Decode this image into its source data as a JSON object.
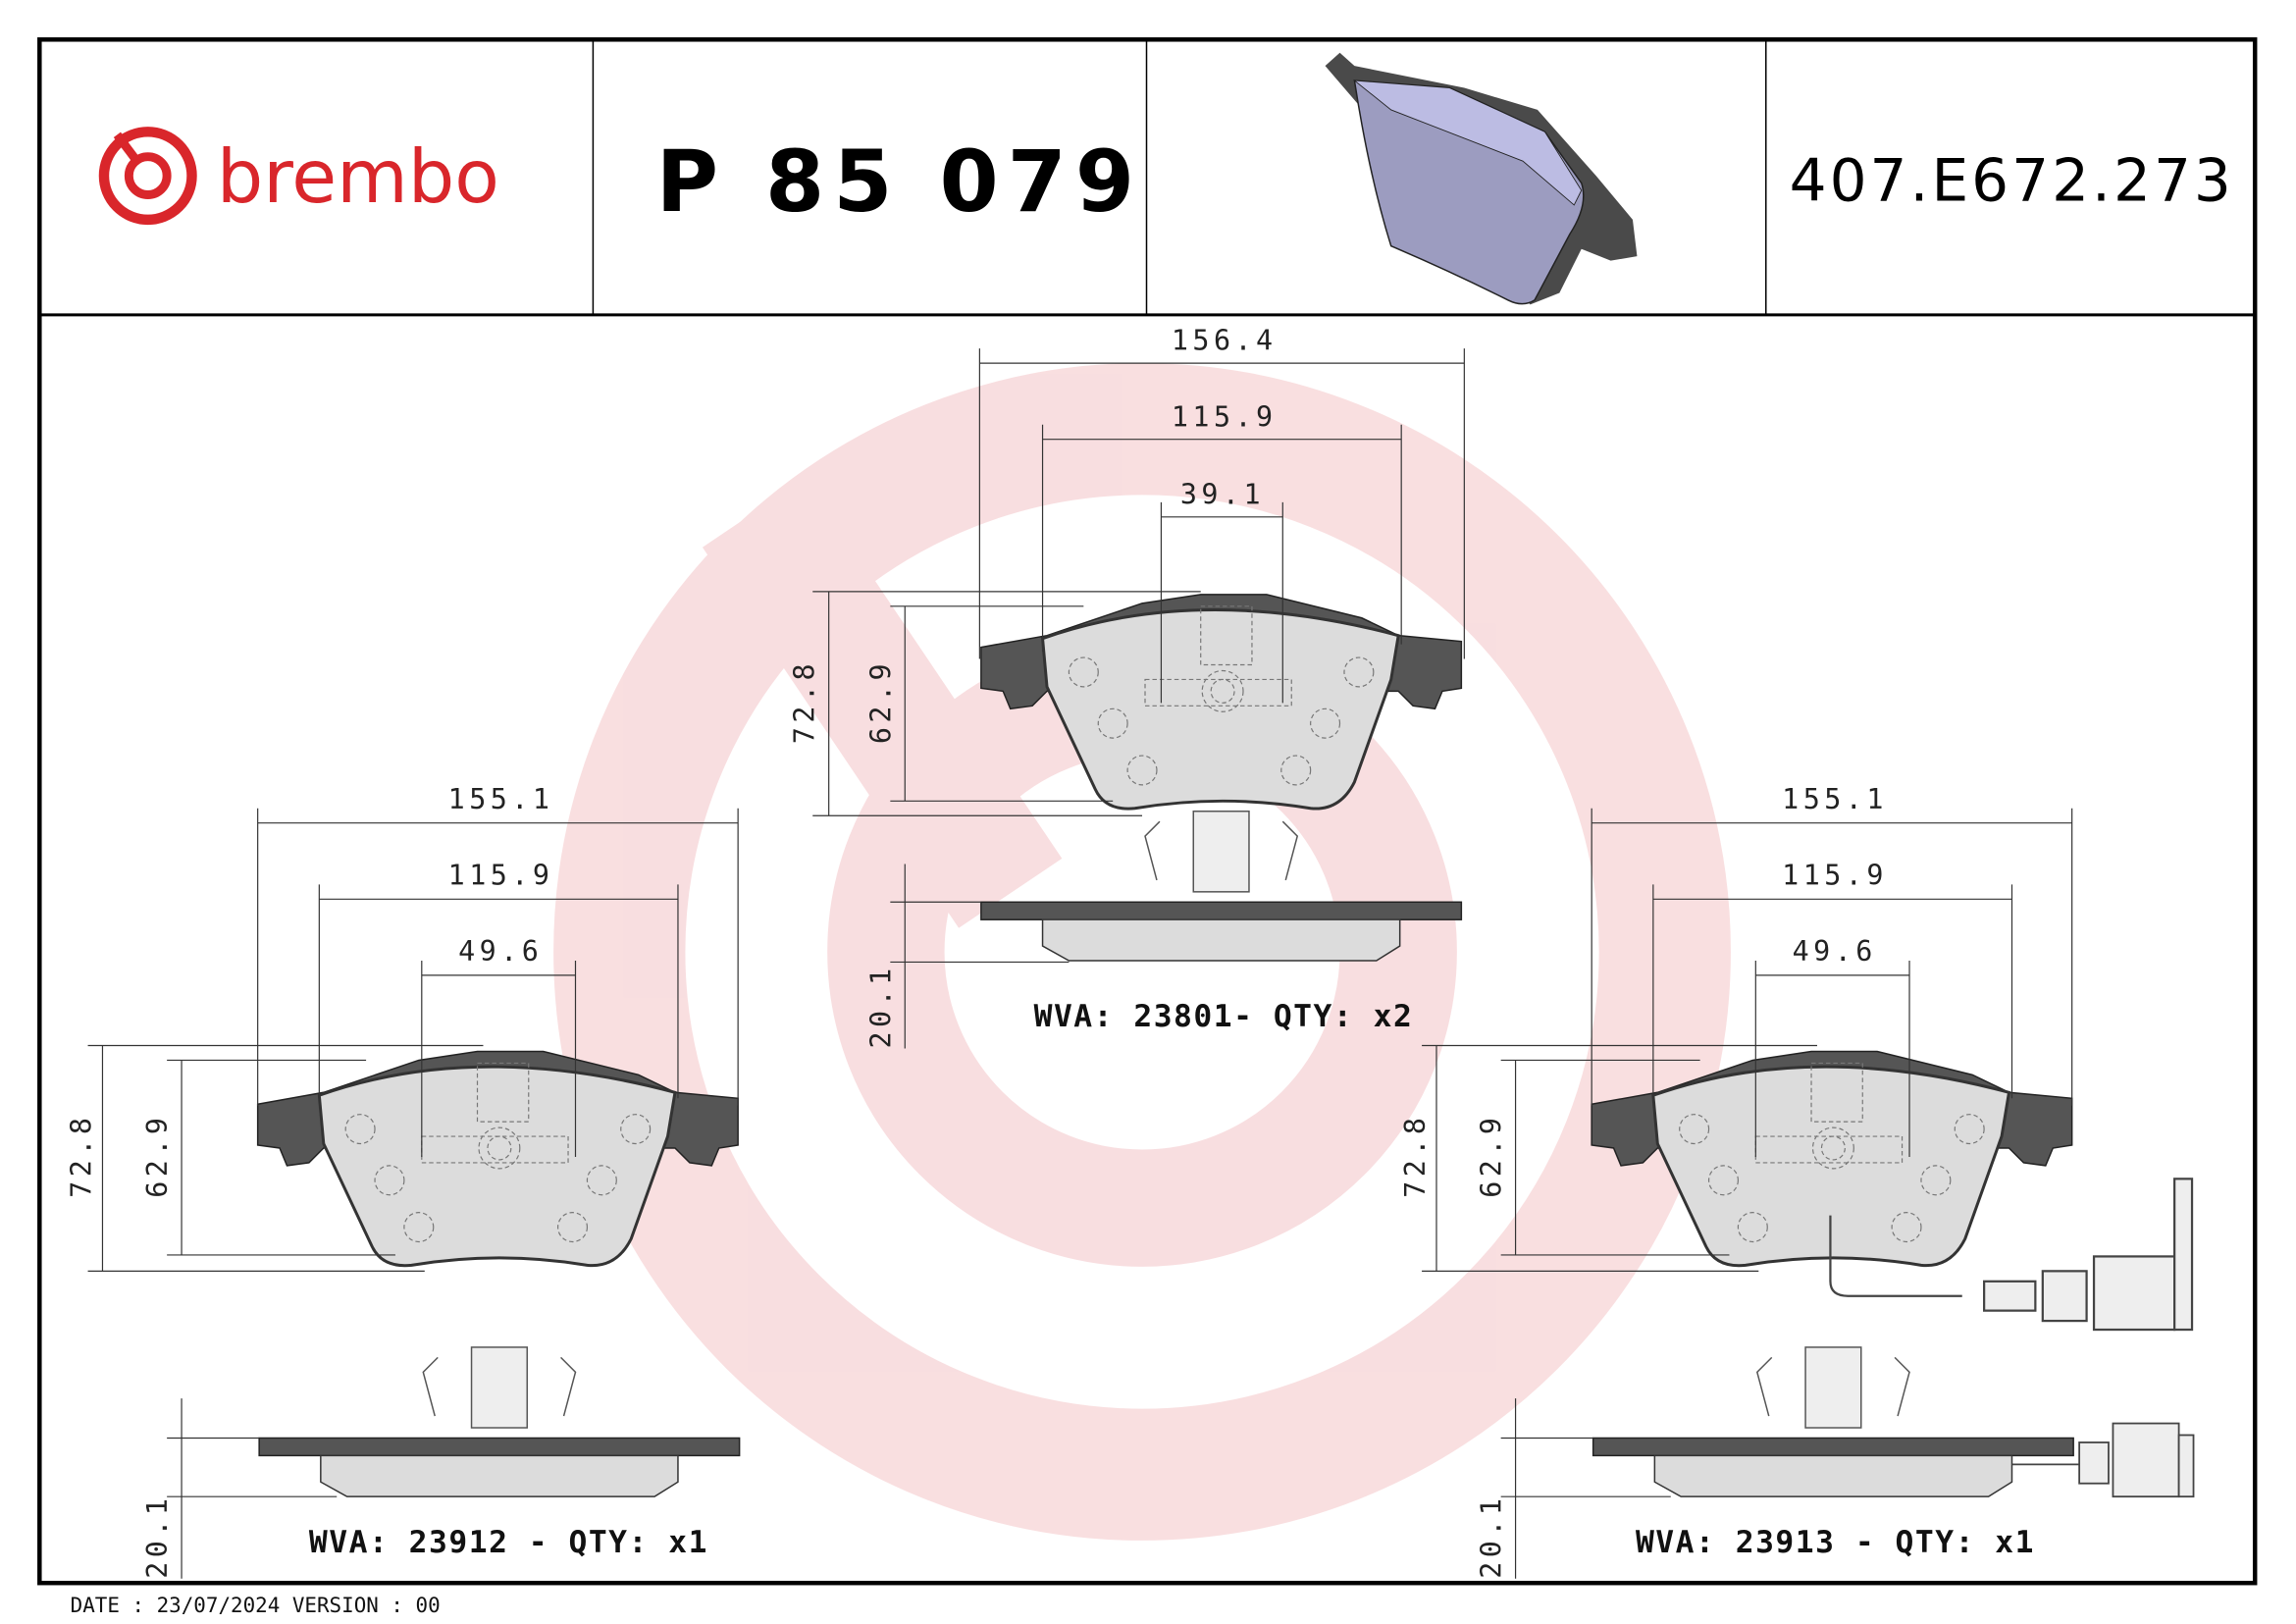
{
  "header": {
    "brand": "brembo",
    "part_number": "P 85 079",
    "reference_code": "407.E672.273",
    "brand_color": "#d9262b"
  },
  "top_view": {
    "dims": {
      "width_total": "156.4",
      "width_friction": "115.9",
      "width_clip": "39.1",
      "height_total": "72.8",
      "height_friction": "62.9",
      "thickness": "20.1"
    },
    "label": "WVA: 23801- QTY: x2"
  },
  "left_view": {
    "dims": {
      "width_total": "155.1",
      "width_friction": "115.9",
      "width_clip": "49.6",
      "height_total": "72.8",
      "height_friction": "62.9",
      "thickness": "20.1"
    },
    "label": "WVA: 23912 - QTY: x1"
  },
  "right_view": {
    "dims": {
      "width_total": "155.1",
      "width_friction": "115.9",
      "width_clip": "49.6",
      "height_total": "72.8",
      "height_friction": "62.9",
      "thickness": "20.1"
    },
    "label": "WVA: 23913 - QTY: x1",
    "has_wear_sensor": true
  },
  "footer": {
    "text": "DATE : 23/07/2024 VERSION : 00"
  }
}
